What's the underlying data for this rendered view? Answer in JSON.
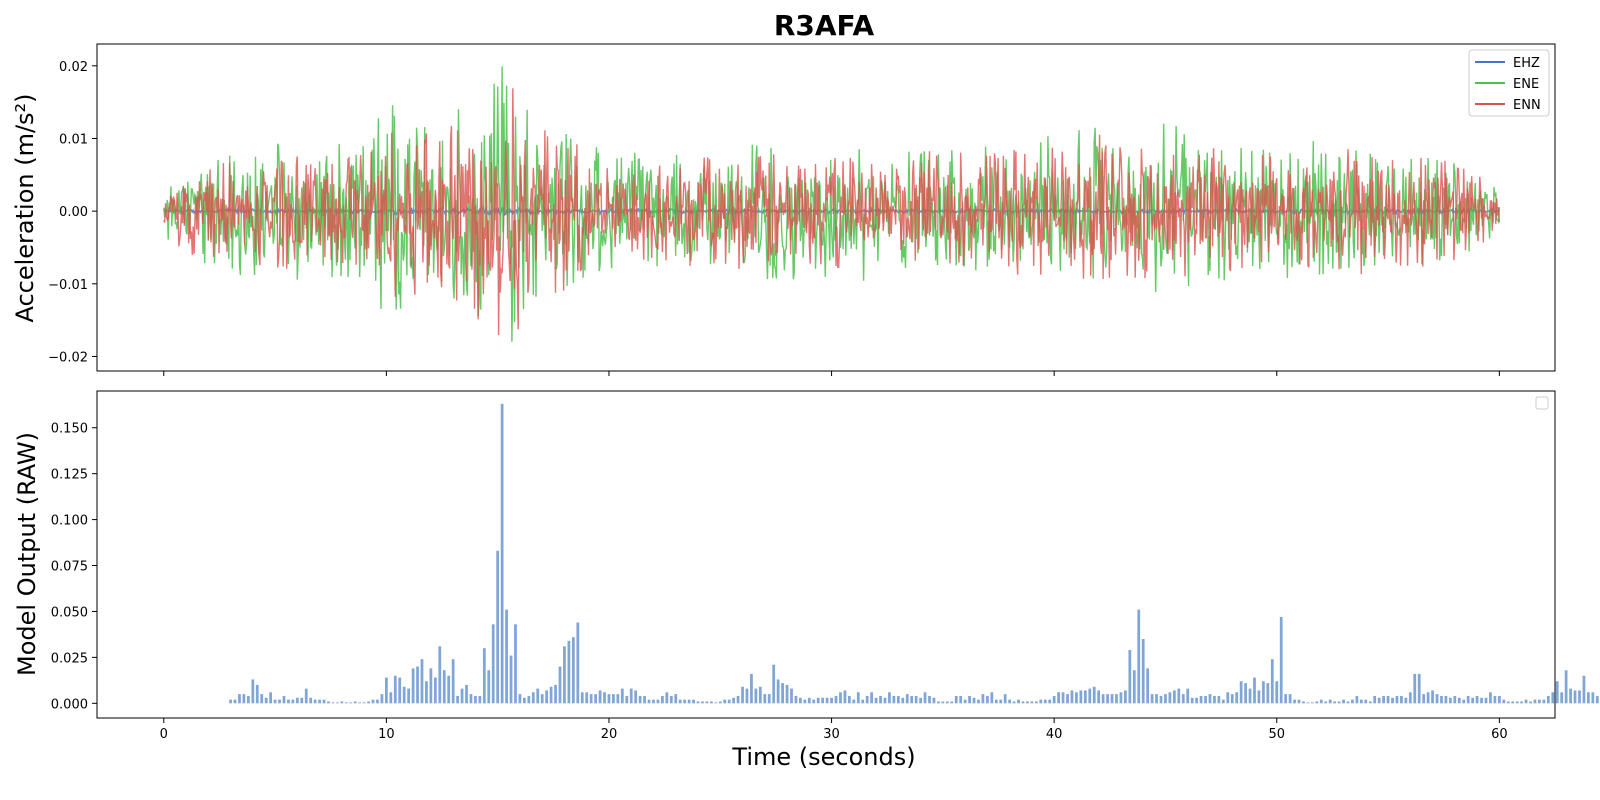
{
  "chart_data": [
    {
      "type": "line",
      "title": "R3AFA",
      "ylabel": "Acceleration (m/s²)",
      "xlabel": "",
      "xlim": [
        -3,
        62.5
      ],
      "ylim": [
        -0.022,
        0.023
      ],
      "x_ticks": [
        0,
        10,
        20,
        30,
        40,
        50,
        60
      ],
      "y_ticks": [
        -0.02,
        -0.01,
        0.0,
        0.01,
        0.02
      ],
      "y_tick_labels": [
        "−0.02",
        "−0.01",
        "0.00",
        "0.01",
        "0.02"
      ],
      "legend_position": "top-right",
      "grid": false,
      "series": [
        {
          "name": "EHZ",
          "color": "#4a72d1"
        },
        {
          "name": "ENE",
          "color": "#4cbf4c"
        },
        {
          "name": "ENN",
          "color": "#d9534f"
        }
      ],
      "envelope": {
        "description": "peak acceleration amplitude over time (m/s²), per channel",
        "t": [
          0,
          1,
          3,
          5,
          7,
          9,
          10,
          11,
          12,
          13,
          14,
          14.5,
          15,
          15.5,
          16,
          17,
          18,
          19,
          20,
          22,
          25,
          27,
          30,
          33,
          36,
          39,
          41,
          43,
          45,
          47,
          50,
          52,
          55,
          58,
          60
        ],
        "ENE": [
          0.003,
          0.006,
          0.009,
          0.01,
          0.009,
          0.01,
          0.016,
          0.013,
          0.011,
          0.012,
          0.015,
          0.019,
          0.021,
          0.019,
          0.016,
          0.014,
          0.013,
          0.009,
          0.008,
          0.008,
          0.008,
          0.01,
          0.009,
          0.008,
          0.009,
          0.01,
          0.012,
          0.009,
          0.013,
          0.01,
          0.008,
          0.009,
          0.008,
          0.007,
          0.003
        ],
        "ENN": [
          0.003,
          0.006,
          0.007,
          0.008,
          0.008,
          0.009,
          0.012,
          0.012,
          0.011,
          0.012,
          0.014,
          0.018,
          0.02,
          0.02,
          0.014,
          0.012,
          0.011,
          0.008,
          0.007,
          0.007,
          0.008,
          0.008,
          0.008,
          0.007,
          0.008,
          0.009,
          0.01,
          0.009,
          0.01,
          0.009,
          0.008,
          0.008,
          0.008,
          0.007,
          0.003
        ],
        "EHZ": [
          0.0003,
          0.0003,
          0.0003,
          0.0003,
          0.0003,
          0.0003,
          0.0004,
          0.0004,
          0.0004,
          0.0004,
          0.0005,
          0.0006,
          0.0006,
          0.0005,
          0.0004,
          0.0004,
          0.0004,
          0.0003,
          0.0003,
          0.0003,
          0.0003,
          0.0003,
          0.0003,
          0.0003,
          0.0003,
          0.0003,
          0.0003,
          0.0003,
          0.0003,
          0.0003,
          0.0003,
          0.0003,
          0.0003,
          0.0003,
          0.0003
        ]
      }
    },
    {
      "type": "bar",
      "title": "",
      "ylabel": "Model Output (RAW)",
      "xlabel": "Time (seconds)",
      "xlim": [
        -3,
        62.5
      ],
      "ylim": [
        -0.008,
        0.17
      ],
      "x_ticks": [
        0,
        10,
        20,
        30,
        40,
        50,
        60
      ],
      "y_ticks": [
        0.0,
        0.025,
        0.05,
        0.075,
        0.1,
        0.125,
        0.15
      ],
      "y_tick_labels": [
        "0.000",
        "0.025",
        "0.050",
        "0.075",
        "0.100",
        "0.125",
        "0.150"
      ],
      "color": "#7fa6d6",
      "x_start": 3.0,
      "x_step": 0.2,
      "values": [
        0.002,
        0.002,
        0.005,
        0.005,
        0.004,
        0.013,
        0.01,
        0.005,
        0.003,
        0.006,
        0.002,
        0.002,
        0.004,
        0.002,
        0.002,
        0.003,
        0.003,
        0.008,
        0.003,
        0.002,
        0.002,
        0.002,
        0.001,
        0.0005,
        0.0005,
        0.001,
        0.0005,
        0.0005,
        0.001,
        0.0005,
        0.0005,
        0.001,
        0.002,
        0.002,
        0.005,
        0.014,
        0.006,
        0.015,
        0.014,
        0.009,
        0.008,
        0.019,
        0.02,
        0.024,
        0.012,
        0.019,
        0.014,
        0.031,
        0.018,
        0.015,
        0.024,
        0.004,
        0.008,
        0.01,
        0.005,
        0.004,
        0.004,
        0.03,
        0.018,
        0.043,
        0.083,
        0.163,
        0.051,
        0.026,
        0.043,
        0.005,
        0.003,
        0.004,
        0.006,
        0.008,
        0.005,
        0.007,
        0.009,
        0.01,
        0.02,
        0.031,
        0.034,
        0.036,
        0.044,
        0.006,
        0.006,
        0.005,
        0.005,
        0.007,
        0.006,
        0.005,
        0.005,
        0.005,
        0.008,
        0.004,
        0.008,
        0.007,
        0.004,
        0.004,
        0.002,
        0.002,
        0.002,
        0.004,
        0.006,
        0.004,
        0.005,
        0.002,
        0.002,
        0.002,
        0.002,
        0.001,
        0.001,
        0.001,
        0.001,
        0.0005,
        0.001,
        0.002,
        0.002,
        0.003,
        0.004,
        0.009,
        0.008,
        0.016,
        0.008,
        0.009,
        0.005,
        0.005,
        0.021,
        0.013,
        0.011,
        0.01,
        0.008,
        0.004,
        0.003,
        0.002,
        0.003,
        0.002,
        0.003,
        0.003,
        0.003,
        0.003,
        0.004,
        0.006,
        0.007,
        0.004,
        0.002,
        0.006,
        0.002,
        0.004,
        0.006,
        0.003,
        0.004,
        0.003,
        0.006,
        0.004,
        0.004,
        0.003,
        0.005,
        0.004,
        0.004,
        0.003,
        0.006,
        0.004,
        0.003,
        0.001,
        0.001,
        0.001,
        0.001,
        0.004,
        0.004,
        0.002,
        0.004,
        0.003,
        0.002,
        0.005,
        0.004,
        0.006,
        0.002,
        0.002,
        0.005,
        0.002,
        0.001,
        0.002,
        0.001,
        0.001,
        0.001,
        0.001,
        0.002,
        0.002,
        0.002,
        0.004,
        0.006,
        0.006,
        0.005,
        0.007,
        0.006,
        0.007,
        0.007,
        0.008,
        0.009,
        0.007,
        0.005,
        0.005,
        0.005,
        0.005,
        0.006,
        0.007,
        0.029,
        0.018,
        0.051,
        0.035,
        0.019,
        0.005,
        0.005,
        0.004,
        0.005,
        0.006,
        0.007,
        0.008,
        0.005,
        0.008,
        0.003,
        0.003,
        0.004,
        0.004,
        0.005,
        0.004,
        0.004,
        0.002,
        0.006,
        0.005,
        0.006,
        0.012,
        0.011,
        0.008,
        0.014,
        0.007,
        0.012,
        0.011,
        0.024,
        0.012,
        0.047,
        0.005,
        0.005,
        0.002,
        0.002,
        0.001,
        0.0005,
        0.0005,
        0.001,
        0.002,
        0.001,
        0.002,
        0.001,
        0.001,
        0.002,
        0.001,
        0.002,
        0.004,
        0.002,
        0.002,
        0.001,
        0.004,
        0.003,
        0.004,
        0.004,
        0.003,
        0.004,
        0.004,
        0.003,
        0.006,
        0.016,
        0.016,
        0.005,
        0.006,
        0.007,
        0.005,
        0.004,
        0.004,
        0.003,
        0.004,
        0.003,
        0.002,
        0.004,
        0.003,
        0.004,
        0.003,
        0.003,
        0.006,
        0.004,
        0.004,
        0.002,
        0.001,
        0.001,
        0.001,
        0.001,
        0.002,
        0.001,
        0.002,
        0.002,
        0.002,
        0.004,
        0.006,
        0.012,
        0.006,
        0.018,
        0.008,
        0.007,
        0.007,
        0.015,
        0.006,
        0.006,
        0.004,
        0.003,
        0.003,
        0.003,
        0.002,
        0.002
      ]
    }
  ]
}
